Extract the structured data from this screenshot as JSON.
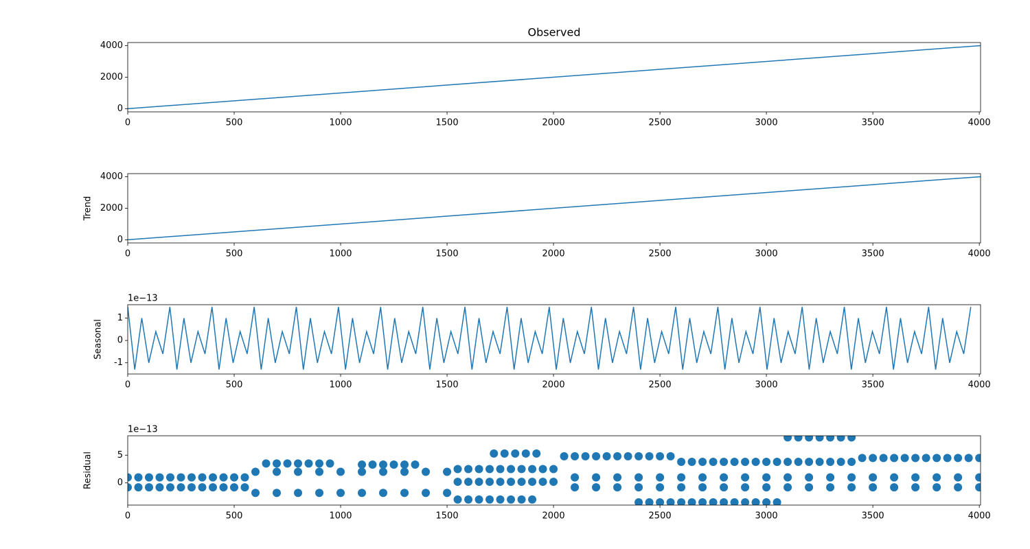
{
  "chart_data": [
    {
      "type": "line",
      "title": "Observed",
      "color": "#1f77b4",
      "x": [
        0,
        4006
      ],
      "values": [
        0,
        4006
      ],
      "xlim": [
        0,
        4006
      ],
      "xticks": [
        0,
        500,
        1000,
        1500,
        2000,
        2500,
        3000,
        3500,
        4000
      ],
      "ylim": [
        -200,
        4200
      ],
      "yticks": [
        0,
        2000,
        4000
      ]
    },
    {
      "type": "line",
      "ylabel": "Trend",
      "color": "#1f77b4",
      "x": [
        0,
        4006
      ],
      "values": [
        0,
        4006
      ],
      "xlim": [
        0,
        4006
      ],
      "xticks": [
        0,
        500,
        1000,
        1500,
        2000,
        2500,
        3000,
        3500,
        4000
      ],
      "ylim": [
        -200,
        4200
      ],
      "yticks": [
        0,
        2000,
        4000
      ]
    },
    {
      "type": "line",
      "ylabel": "Seasonal",
      "offset_label": "1e−13",
      "color": "#1f77b4",
      "x": [
        0,
        33,
        66,
        99,
        132,
        165,
        198,
        231,
        264,
        297,
        330,
        363,
        396,
        429,
        462,
        495,
        528,
        561,
        594,
        627,
        660,
        693,
        726,
        759,
        792,
        825,
        858,
        891,
        924,
        957,
        990,
        1023,
        1056,
        1089,
        1122,
        1155,
        1188,
        1221,
        1254,
        1287,
        1320,
        1353,
        1386,
        1419,
        1452,
        1485,
        1518,
        1551,
        1584,
        1617,
        1650,
        1683,
        1716,
        1749,
        1782,
        1815,
        1848,
        1881,
        1914,
        1947,
        1980,
        2013,
        2046,
        2079,
        2112,
        2145,
        2178,
        2211,
        2244,
        2277,
        2310,
        2343,
        2376,
        2409,
        2442,
        2475,
        2508,
        2541,
        2574,
        2607,
        2640,
        2673,
        2706,
        2739,
        2772,
        2805,
        2838,
        2871,
        2904,
        2937,
        2970,
        3003,
        3036,
        3069,
        3102,
        3135,
        3168,
        3201,
        3234,
        3267,
        3300,
        3333,
        3366,
        3399,
        3432,
        3465,
        3498,
        3531,
        3564,
        3597,
        3630,
        3663,
        3696,
        3729,
        3762,
        3795,
        3828,
        3861,
        3894,
        3927,
        3960
      ],
      "values": [
        1.5,
        -1.3,
        1,
        -1,
        0.4,
        -0.6,
        1.5,
        -1.3,
        1,
        -1,
        0.4,
        -0.6,
        1.5,
        -1.3,
        1,
        -1,
        0.4,
        -0.6,
        1.5,
        -1.3,
        1,
        -1,
        0.4,
        -0.6,
        1.5,
        -1.3,
        1,
        -1,
        0.4,
        -0.6,
        1.5,
        -1.3,
        1,
        -1,
        0.4,
        -0.6,
        1.5,
        -1.3,
        1,
        -1,
        0.4,
        -0.6,
        1.5,
        -1.3,
        1,
        -1,
        0.4,
        -0.6,
        1.5,
        -1.3,
        1,
        -1,
        0.4,
        -0.6,
        1.5,
        -1.3,
        1,
        -1,
        0.4,
        -0.6,
        1.5,
        -1.3,
        1,
        -1,
        0.4,
        -0.6,
        1.5,
        -1.3,
        1,
        -1,
        0.4,
        -0.6,
        1.5,
        -1.3,
        1,
        -1,
        0.4,
        -0.6,
        1.5,
        -1.3,
        1,
        -1,
        0.4,
        -0.6,
        1.5,
        -1.3,
        1,
        -1,
        0.4,
        -0.6,
        1.5,
        -1.3,
        1,
        -1,
        0.4,
        -0.6,
        1.5,
        -1.3,
        1,
        -1,
        0.4,
        -0.6,
        1.5,
        -1.3,
        1,
        -1,
        0.4,
        -0.6,
        1.5,
        -1.3,
        1,
        -1,
        0.4,
        -0.6,
        1.5,
        -1.3,
        1,
        -1,
        0.4,
        -0.6,
        1.5
      ],
      "xlim": [
        0,
        4006
      ],
      "xticks": [
        0,
        500,
        1000,
        1500,
        2000,
        2500,
        3000,
        3500,
        4000
      ],
      "ylim": [
        -1.5,
        1.6
      ],
      "yticks": [
        -1,
        0,
        1
      ]
    },
    {
      "type": "scatter",
      "ylabel": "Residual",
      "offset_label": "1e−13",
      "color": "#1f77b4",
      "x": [
        0,
        50,
        100,
        150,
        200,
        250,
        300,
        350,
        400,
        450,
        500,
        550,
        0,
        50,
        100,
        150,
        200,
        250,
        300,
        350,
        400,
        450,
        500,
        550,
        600,
        700,
        800,
        900,
        1000,
        1100,
        1200,
        1300,
        1400,
        1500,
        600,
        700,
        800,
        900,
        1000,
        1100,
        1200,
        1300,
        1400,
        1500,
        650,
        700,
        750,
        800,
        850,
        900,
        950,
        1100,
        1150,
        1200,
        1250,
        1300,
        1350,
        1550,
        1600,
        1650,
        1700,
        1750,
        1800,
        1850,
        1900,
        1950,
        2000,
        1550,
        1600,
        1650,
        1700,
        1750,
        1800,
        1850,
        1900,
        1950,
        2000,
        1550,
        1600,
        1650,
        1700,
        1750,
        1800,
        1850,
        1900,
        1720,
        1770,
        1820,
        1870,
        1920,
        2050,
        2100,
        2150,
        2200,
        2250,
        2300,
        2350,
        2400,
        2450,
        2500,
        2550,
        2100,
        2200,
        2300,
        2400,
        2500,
        2600,
        2700,
        2800,
        2900,
        3000,
        3100,
        3200,
        3300,
        3400,
        3500,
        3600,
        3700,
        3800,
        3900,
        4000,
        2100,
        2200,
        2300,
        2400,
        2500,
        2600,
        2700,
        2800,
        2900,
        3000,
        3100,
        3200,
        3300,
        3400,
        3500,
        3600,
        3700,
        3800,
        3900,
        4000,
        2600,
        2650,
        2700,
        2750,
        2800,
        2850,
        2900,
        2950,
        3000,
        3050,
        3100,
        3150,
        3200,
        3250,
        3300,
        3350,
        3400,
        3450,
        3500,
        3550,
        3600,
        3650,
        3700,
        3750,
        3800,
        3850,
        3900,
        3950,
        4000,
        2400,
        2450,
        2500,
        2550,
        2600,
        2650,
        2700,
        2750,
        2800,
        2850,
        2900,
        2950,
        3000,
        3050,
        3100,
        3150,
        3200,
        3250,
        3300,
        3350,
        3400
      ],
      "values": [
        1,
        1,
        1,
        1,
        1,
        1,
        1,
        1,
        1,
        1,
        1,
        1,
        -0.8,
        -0.8,
        -0.8,
        -0.8,
        -0.8,
        -0.8,
        -0.8,
        -0.8,
        -0.8,
        -0.8,
        -0.8,
        -0.8,
        2,
        2,
        2,
        2,
        2,
        2,
        2,
        2,
        2,
        2,
        -1.8,
        -1.8,
        -1.8,
        -1.8,
        -1.8,
        -1.8,
        -1.8,
        -1.8,
        -1.8,
        -1.8,
        3.5,
        3.5,
        3.5,
        3.5,
        3.5,
        3.5,
        3.5,
        3.3,
        3.3,
        3.3,
        3.3,
        3.3,
        3.3,
        2.5,
        2.5,
        2.5,
        2.5,
        2.5,
        2.5,
        2.5,
        2.5,
        2.5,
        2.5,
        0.2,
        0.2,
        0.2,
        0.2,
        0.2,
        0.2,
        0.2,
        0.2,
        0.2,
        0.2,
        -3,
        -3,
        -3,
        -3,
        -3,
        -3,
        -3,
        -3,
        5.3,
        5.3,
        5.3,
        5.3,
        5.3,
        4.8,
        4.8,
        4.8,
        4.8,
        4.8,
        4.8,
        4.8,
        4.8,
        4.8,
        4.8,
        4.8,
        1,
        1,
        1,
        1,
        1,
        1,
        1,
        1,
        1,
        1,
        1,
        1,
        1,
        1,
        1,
        1,
        1,
        1,
        1,
        1,
        -0.8,
        -0.8,
        -0.8,
        -0.8,
        -0.8,
        -0.8,
        -0.8,
        -0.8,
        -0.8,
        -0.8,
        -0.8,
        -0.8,
        -0.8,
        -0.8,
        -0.8,
        -0.8,
        -0.8,
        -0.8,
        -0.8,
        -0.8,
        3.8,
        3.8,
        3.8,
        3.8,
        3.8,
        3.8,
        3.8,
        3.8,
        3.8,
        3.8,
        3.8,
        3.8,
        3.8,
        3.8,
        3.8,
        3.8,
        3.8,
        4.5,
        4.5,
        4.5,
        4.5,
        4.5,
        4.5,
        4.5,
        4.5,
        4.5,
        4.5,
        4.5,
        4.5,
        -3.5,
        -3.5,
        -3.5,
        -3.5,
        -3.5,
        -3.5,
        -3.5,
        -3.5,
        -3.5,
        -3.5,
        -3.5,
        -3.5,
        -3.5,
        -3.5,
        8.2,
        8.2,
        8.2,
        8.2,
        8.2,
        8.2,
        8.2
      ],
      "xlim": [
        0,
        4006
      ],
      "xticks": [
        0,
        500,
        1000,
        1500,
        2000,
        2500,
        3000,
        3500,
        4000
      ],
      "ylim": [
        -4,
        8.5
      ],
      "yticks": [
        0,
        5
      ]
    }
  ]
}
